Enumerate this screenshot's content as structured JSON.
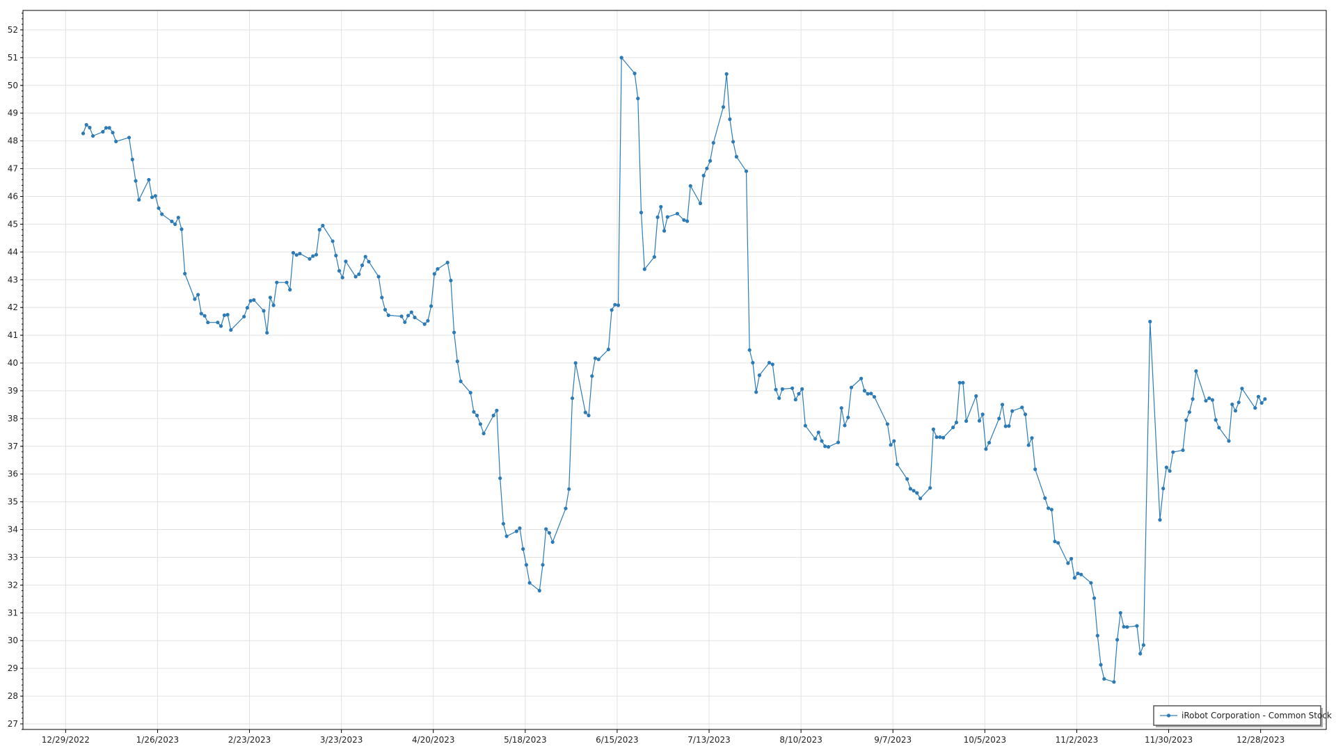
{
  "chart_data": {
    "type": "line",
    "title": "",
    "xlabel": "",
    "ylabel": "",
    "grid": true,
    "legend_placement": "bottom-right",
    "colors": {
      "series": "#2c7bb6",
      "grid": "#e2e2e2",
      "frame": "#000000"
    },
    "xlim": [
      "2022-12-16",
      "2024-01-17"
    ],
    "ylim": [
      26.8,
      52.7
    ],
    "x_ticks": [
      "12/29/2022",
      "1/26/2023",
      "2/23/2023",
      "3/23/2023",
      "4/20/2023",
      "5/18/2023",
      "6/15/2023",
      "7/13/2023",
      "8/10/2023",
      "9/7/2023",
      "10/5/2023",
      "11/2/2023",
      "11/30/2023",
      "12/28/2023"
    ],
    "y_ticks": [
      27,
      28,
      29,
      30,
      31,
      32,
      33,
      34,
      35,
      36,
      37,
      38,
      39,
      40,
      41,
      42,
      43,
      44,
      45,
      46,
      47,
      48,
      49,
      50,
      51,
      52
    ],
    "series": [
      {
        "name": "iRobot Corporation - Common Stock",
        "points": [
          [
            "2023-01-03",
            48.27
          ],
          [
            "2023-01-04",
            48.58
          ],
          [
            "2023-01-05",
            48.48
          ],
          [
            "2023-01-06",
            48.18
          ],
          [
            "2023-01-09",
            48.33
          ],
          [
            "2023-01-10",
            48.47
          ],
          [
            "2023-01-11",
            48.47
          ],
          [
            "2023-01-12",
            48.3
          ],
          [
            "2023-01-13",
            47.98
          ],
          [
            "2023-01-17",
            48.12
          ],
          [
            "2023-01-18",
            47.33
          ],
          [
            "2023-01-19",
            46.56
          ],
          [
            "2023-01-20",
            45.88
          ],
          [
            "2023-01-23",
            46.6
          ],
          [
            "2023-01-24",
            45.97
          ],
          [
            "2023-01-25",
            46.02
          ],
          [
            "2023-01-26",
            45.58
          ],
          [
            "2023-01-27",
            45.36
          ],
          [
            "2023-01-30",
            45.1
          ],
          [
            "2023-01-31",
            45.0
          ],
          [
            "2023-02-01",
            45.24
          ],
          [
            "2023-02-02",
            44.82
          ],
          [
            "2023-02-03",
            43.22
          ],
          [
            "2023-02-06",
            42.3
          ],
          [
            "2023-02-07",
            42.46
          ],
          [
            "2023-02-08",
            41.78
          ],
          [
            "2023-02-09",
            41.7
          ],
          [
            "2023-02-10",
            41.46
          ],
          [
            "2023-02-13",
            41.46
          ],
          [
            "2023-02-14",
            41.33
          ],
          [
            "2023-02-15",
            41.72
          ],
          [
            "2023-02-16",
            41.74
          ],
          [
            "2023-02-17",
            41.19
          ],
          [
            "2023-02-21",
            41.67
          ],
          [
            "2023-02-22",
            41.99
          ],
          [
            "2023-02-23",
            42.24
          ],
          [
            "2023-02-24",
            42.27
          ],
          [
            "2023-02-27",
            41.88
          ],
          [
            "2023-02-28",
            41.09
          ],
          [
            "2023-03-01",
            42.36
          ],
          [
            "2023-03-02",
            42.08
          ],
          [
            "2023-03-03",
            42.9
          ],
          [
            "2023-03-06",
            42.9
          ],
          [
            "2023-03-07",
            42.64
          ],
          [
            "2023-03-08",
            43.97
          ],
          [
            "2023-03-09",
            43.89
          ],
          [
            "2023-03-10",
            43.94
          ],
          [
            "2023-03-13",
            43.75
          ],
          [
            "2023-03-14",
            43.85
          ],
          [
            "2023-03-15",
            43.9
          ],
          [
            "2023-03-16",
            44.8
          ],
          [
            "2023-03-17",
            44.95
          ],
          [
            "2023-03-20",
            44.39
          ],
          [
            "2023-03-21",
            43.87
          ],
          [
            "2023-03-22",
            43.32
          ],
          [
            "2023-03-23",
            43.08
          ],
          [
            "2023-03-24",
            43.66
          ],
          [
            "2023-03-27",
            43.11
          ],
          [
            "2023-03-28",
            43.2
          ],
          [
            "2023-03-29",
            43.52
          ],
          [
            "2023-03-30",
            43.83
          ],
          [
            "2023-03-31",
            43.65
          ],
          [
            "2023-04-03",
            43.11
          ],
          [
            "2023-04-04",
            42.36
          ],
          [
            "2023-04-05",
            41.92
          ],
          [
            "2023-04-06",
            41.72
          ],
          [
            "2023-04-10",
            41.68
          ],
          [
            "2023-04-11",
            41.47
          ],
          [
            "2023-04-12",
            41.71
          ],
          [
            "2023-04-13",
            41.83
          ],
          [
            "2023-04-14",
            41.64
          ],
          [
            "2023-04-17",
            41.4
          ],
          [
            "2023-04-18",
            41.52
          ],
          [
            "2023-04-19",
            42.05
          ],
          [
            "2023-04-20",
            43.21
          ],
          [
            "2023-04-21",
            43.39
          ],
          [
            "2023-04-24",
            43.62
          ],
          [
            "2023-04-25",
            42.97
          ],
          [
            "2023-04-26",
            41.1
          ],
          [
            "2023-04-27",
            40.06
          ],
          [
            "2023-04-28",
            39.34
          ],
          [
            "2023-05-01",
            38.93
          ],
          [
            "2023-05-02",
            38.24
          ],
          [
            "2023-05-03",
            38.11
          ],
          [
            "2023-05-04",
            37.8
          ],
          [
            "2023-05-05",
            37.46
          ],
          [
            "2023-05-08",
            38.11
          ],
          [
            "2023-05-09",
            38.29
          ],
          [
            "2023-05-10",
            35.85
          ],
          [
            "2023-05-11",
            34.21
          ],
          [
            "2023-05-12",
            33.76
          ],
          [
            "2023-05-15",
            33.94
          ],
          [
            "2023-05-16",
            34.05
          ],
          [
            "2023-05-17",
            33.3
          ],
          [
            "2023-05-18",
            32.73
          ],
          [
            "2023-05-19",
            32.08
          ],
          [
            "2023-05-22",
            31.8
          ],
          [
            "2023-05-23",
            32.73
          ],
          [
            "2023-05-24",
            34.02
          ],
          [
            "2023-05-25",
            33.88
          ],
          [
            "2023-05-26",
            33.55
          ],
          [
            "2023-05-30",
            34.76
          ],
          [
            "2023-05-31",
            35.46
          ],
          [
            "2023-06-01",
            38.73
          ],
          [
            "2023-06-02",
            40.0
          ],
          [
            "2023-06-05",
            38.22
          ],
          [
            "2023-06-06",
            38.11
          ],
          [
            "2023-06-07",
            39.53
          ],
          [
            "2023-06-08",
            40.17
          ],
          [
            "2023-06-09",
            40.13
          ],
          [
            "2023-06-12",
            40.49
          ],
          [
            "2023-06-13",
            41.91
          ],
          [
            "2023-06-14",
            42.1
          ],
          [
            "2023-06-15",
            42.08
          ],
          [
            "2023-06-16",
            51.0
          ],
          [
            "2023-06-20",
            50.43
          ],
          [
            "2023-06-21",
            49.53
          ],
          [
            "2023-06-22",
            45.42
          ],
          [
            "2023-06-23",
            43.38
          ],
          [
            "2023-06-26",
            43.82
          ],
          [
            "2023-06-27",
            45.25
          ],
          [
            "2023-06-28",
            45.63
          ],
          [
            "2023-06-29",
            44.76
          ],
          [
            "2023-06-30",
            45.26
          ],
          [
            "2023-07-03",
            45.38
          ],
          [
            "2023-07-05",
            45.15
          ],
          [
            "2023-07-06",
            45.11
          ],
          [
            "2023-07-07",
            46.38
          ],
          [
            "2023-07-10",
            45.75
          ],
          [
            "2023-07-11",
            46.75
          ],
          [
            "2023-07-12",
            47.01
          ],
          [
            "2023-07-13",
            47.28
          ],
          [
            "2023-07-14",
            47.93
          ],
          [
            "2023-07-17",
            49.22
          ],
          [
            "2023-07-18",
            50.41
          ],
          [
            "2023-07-19",
            48.78
          ],
          [
            "2023-07-20",
            47.97
          ],
          [
            "2023-07-21",
            47.43
          ],
          [
            "2023-07-24",
            46.91
          ],
          [
            "2023-07-25",
            40.47
          ],
          [
            "2023-07-26",
            40.01
          ],
          [
            "2023-07-27",
            38.95
          ],
          [
            "2023-07-28",
            39.56
          ],
          [
            "2023-07-31",
            40.01
          ],
          [
            "2023-08-01",
            39.95
          ],
          [
            "2023-08-02",
            39.04
          ],
          [
            "2023-08-03",
            38.73
          ],
          [
            "2023-08-04",
            39.06
          ],
          [
            "2023-08-07",
            39.09
          ],
          [
            "2023-08-08",
            38.68
          ],
          [
            "2023-08-09",
            38.89
          ],
          [
            "2023-08-10",
            39.06
          ],
          [
            "2023-08-11",
            37.74
          ],
          [
            "2023-08-14",
            37.27
          ],
          [
            "2023-08-15",
            37.5
          ],
          [
            "2023-08-16",
            37.19
          ],
          [
            "2023-08-17",
            37.0
          ],
          [
            "2023-08-18",
            36.98
          ],
          [
            "2023-08-21",
            37.14
          ],
          [
            "2023-08-22",
            38.38
          ],
          [
            "2023-08-23",
            37.75
          ],
          [
            "2023-08-24",
            38.04
          ],
          [
            "2023-08-25",
            39.12
          ],
          [
            "2023-08-28",
            39.44
          ],
          [
            "2023-08-29",
            39.0
          ],
          [
            "2023-08-30",
            38.89
          ],
          [
            "2023-08-31",
            38.9
          ],
          [
            "2023-09-01",
            38.78
          ],
          [
            "2023-09-05",
            37.8
          ],
          [
            "2023-09-06",
            37.05
          ],
          [
            "2023-09-07",
            37.19
          ],
          [
            "2023-09-08",
            36.35
          ],
          [
            "2023-09-11",
            35.82
          ],
          [
            "2023-09-12",
            35.47
          ],
          [
            "2023-09-13",
            35.4
          ],
          [
            "2023-09-14",
            35.32
          ],
          [
            "2023-09-15",
            35.12
          ],
          [
            "2023-09-18",
            35.5
          ],
          [
            "2023-09-19",
            37.61
          ],
          [
            "2023-09-20",
            37.33
          ],
          [
            "2023-09-21",
            37.33
          ],
          [
            "2023-09-22",
            37.31
          ],
          [
            "2023-09-25",
            37.68
          ],
          [
            "2023-09-26",
            37.86
          ],
          [
            "2023-09-27",
            39.29
          ],
          [
            "2023-09-28",
            39.29
          ],
          [
            "2023-09-29",
            37.91
          ],
          [
            "2023-10-02",
            38.81
          ],
          [
            "2023-10-03",
            37.92
          ],
          [
            "2023-10-04",
            38.15
          ],
          [
            "2023-10-05",
            36.9
          ],
          [
            "2023-10-06",
            37.13
          ],
          [
            "2023-10-09",
            38.0
          ],
          [
            "2023-10-10",
            38.5
          ],
          [
            "2023-10-11",
            37.72
          ],
          [
            "2023-10-12",
            37.73
          ],
          [
            "2023-10-13",
            38.27
          ],
          [
            "2023-10-16",
            38.4
          ],
          [
            "2023-10-17",
            38.15
          ],
          [
            "2023-10-18",
            37.04
          ],
          [
            "2023-10-19",
            37.3
          ],
          [
            "2023-10-20",
            36.17
          ],
          [
            "2023-10-23",
            35.13
          ],
          [
            "2023-10-24",
            34.77
          ],
          [
            "2023-10-25",
            34.72
          ],
          [
            "2023-10-26",
            33.57
          ],
          [
            "2023-10-27",
            33.52
          ],
          [
            "2023-10-30",
            32.79
          ],
          [
            "2023-10-31",
            32.95
          ],
          [
            "2023-11-01",
            32.26
          ],
          [
            "2023-11-02",
            32.42
          ],
          [
            "2023-11-03",
            32.38
          ],
          [
            "2023-11-06",
            32.08
          ],
          [
            "2023-11-07",
            31.53
          ],
          [
            "2023-11-08",
            30.18
          ],
          [
            "2023-11-09",
            29.13
          ],
          [
            "2023-11-10",
            28.62
          ],
          [
            "2023-11-13",
            28.51
          ],
          [
            "2023-11-14",
            30.03
          ],
          [
            "2023-11-15",
            31.0
          ],
          [
            "2023-11-16",
            30.5
          ],
          [
            "2023-11-17",
            30.49
          ],
          [
            "2023-11-20",
            30.53
          ],
          [
            "2023-11-21",
            29.53
          ],
          [
            "2023-11-22",
            29.84
          ],
          [
            "2023-11-24",
            41.49
          ],
          [
            "2023-11-27",
            34.35
          ],
          [
            "2023-11-28",
            35.48
          ],
          [
            "2023-11-29",
            36.24
          ],
          [
            "2023-11-30",
            36.11
          ],
          [
            "2023-12-01",
            36.79
          ],
          [
            "2023-12-04",
            36.86
          ],
          [
            "2023-12-05",
            37.94
          ],
          [
            "2023-12-06",
            38.23
          ],
          [
            "2023-12-07",
            38.7
          ],
          [
            "2023-12-08",
            39.71
          ],
          [
            "2023-12-11",
            38.64
          ],
          [
            "2023-12-12",
            38.73
          ],
          [
            "2023-12-13",
            38.67
          ],
          [
            "2023-12-14",
            37.95
          ],
          [
            "2023-12-15",
            37.67
          ],
          [
            "2023-12-18",
            37.19
          ],
          [
            "2023-12-19",
            38.51
          ],
          [
            "2023-12-20",
            38.28
          ],
          [
            "2023-12-21",
            38.58
          ],
          [
            "2023-12-22",
            39.08
          ],
          [
            "2023-12-26",
            38.38
          ],
          [
            "2023-12-27",
            38.79
          ],
          [
            "2023-12-28",
            38.56
          ],
          [
            "2023-12-29",
            38.7
          ]
        ]
      }
    ]
  }
}
